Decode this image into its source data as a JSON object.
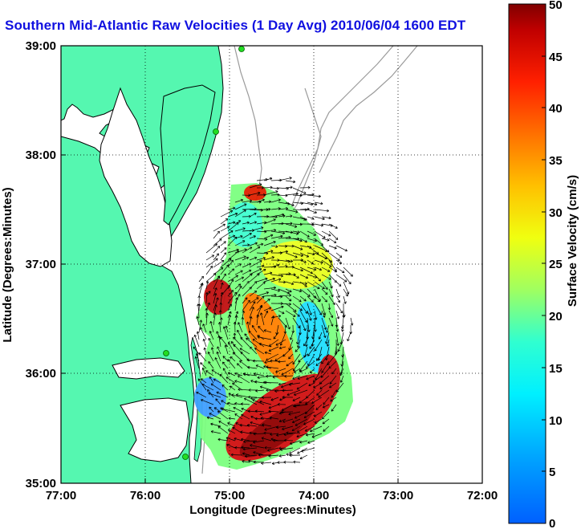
{
  "title": "Southern Mid-Atlantic Raw Velocities (1 Day Avg) 2010/06/04 1600 EDT",
  "map": {
    "xlabel": "Longitude (Degrees:Minutes)",
    "ylabel": "Latitude (Degrees:Minutes)",
    "x_ticks": [
      "77:00",
      "76:00",
      "75:00",
      "74:00",
      "73:00",
      "72:00"
    ],
    "y_ticks": [
      "39:00",
      "38:00",
      "37:00",
      "36:00",
      "35:00"
    ],
    "lon_range": [
      -77,
      -72
    ],
    "lat_range": [
      35,
      39
    ],
    "grid": "dotted",
    "land_color": "#55f7b0",
    "coast_color": "#000000",
    "bathymetry_color": "#9a9a9a",
    "station_color": "#22dd22"
  },
  "colorbar": {
    "label": "Surface Velocity (cm/s)",
    "ticks": [
      "50",
      "45",
      "40",
      "35",
      "30",
      "25",
      "20",
      "15",
      "10",
      "5",
      "0"
    ],
    "range": [
      0,
      50
    ],
    "colormap": "jet"
  }
}
